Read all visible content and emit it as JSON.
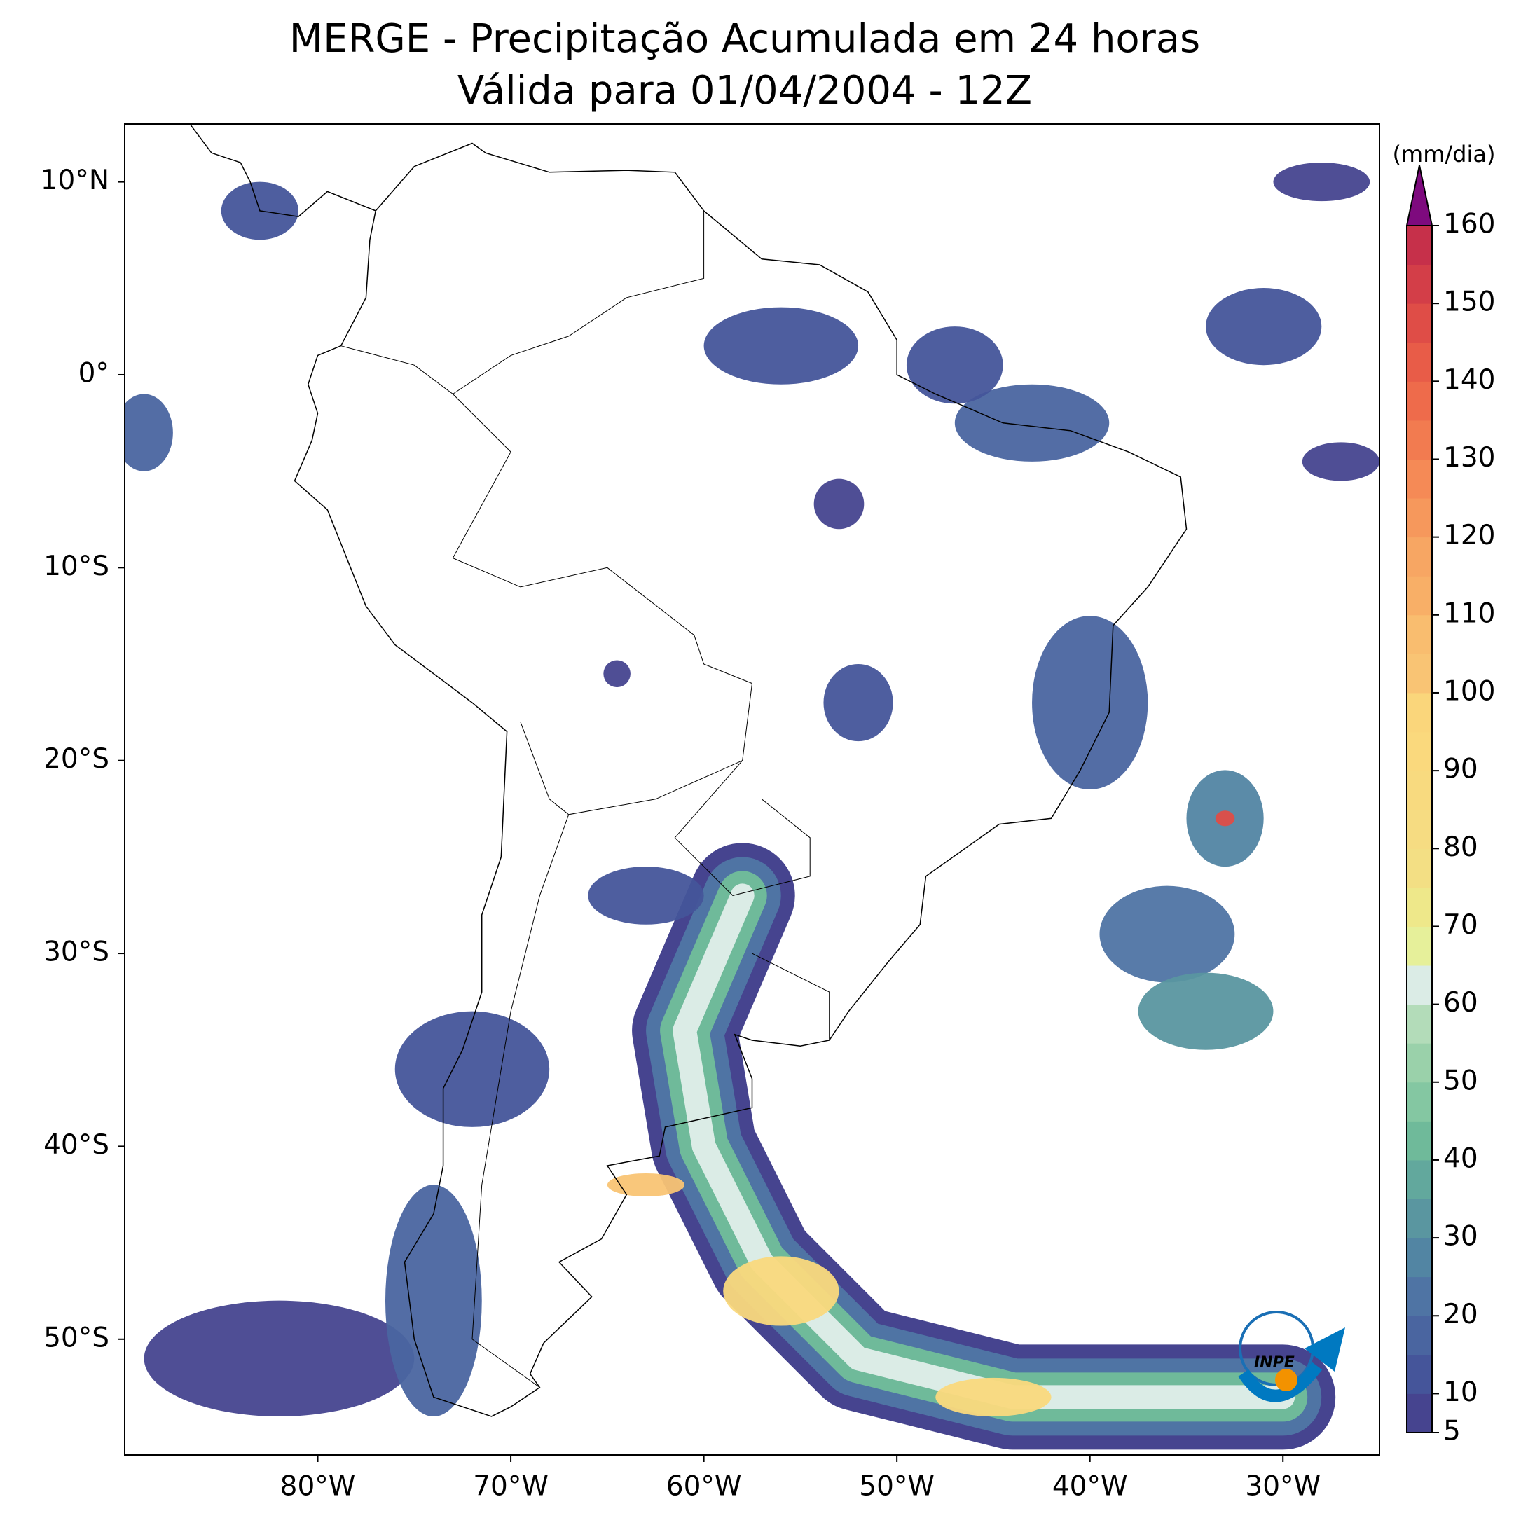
{
  "title": [
    "MERGE - Precipitação Acumulada em 24 horas",
    "Válida para 01/04/2004 - 12Z"
  ],
  "map": {
    "xlim": [
      -90,
      -25
    ],
    "ylim": [
      -56,
      13
    ],
    "xticks": [
      {
        "value": -80,
        "label": "80°W"
      },
      {
        "value": -70,
        "label": "70°W"
      },
      {
        "value": -60,
        "label": "60°W"
      },
      {
        "value": -50,
        "label": "50°W"
      },
      {
        "value": -40,
        "label": "40°W"
      },
      {
        "value": -30,
        "label": "30°W"
      }
    ],
    "yticks": [
      {
        "value": 10,
        "label": "10°N"
      },
      {
        "value": 0,
        "label": "0°"
      },
      {
        "value": -10,
        "label": "10°S"
      },
      {
        "value": -20,
        "label": "20°S"
      },
      {
        "value": -30,
        "label": "30°S"
      },
      {
        "value": -40,
        "label": "40°S"
      },
      {
        "value": -50,
        "label": "50°S"
      }
    ]
  },
  "colorbar": {
    "label": "(mm/dia)",
    "levels": [
      5,
      10,
      15,
      20,
      25,
      30,
      35,
      40,
      45,
      50,
      55,
      60,
      65,
      70,
      75,
      80,
      85,
      90,
      95,
      100,
      105,
      110,
      115,
      120,
      125,
      130,
      135,
      140,
      145,
      150,
      155,
      160
    ],
    "colors": [
      "#46448f",
      "#45559a",
      "#4a65a0",
      "#4f74a4",
      "#5285a3",
      "#5a96a0",
      "#62a89d",
      "#6fba9a",
      "#84c7a2",
      "#9ad1aa",
      "#b3dcb9",
      "#dbece6",
      "#e6f09a",
      "#eee88a",
      "#f3df84",
      "#f6dc82",
      "#f8da7f",
      "#fad97d",
      "#fad67b",
      "#f9c474",
      "#f9bd6f",
      "#f8af67",
      "#f7a663",
      "#f6985c",
      "#f58a56",
      "#f27b50",
      "#ee6b4b",
      "#e85c48",
      "#df4d47",
      "#d33e48",
      "#c6304a"
    ],
    "over_color": "#7e0a7e",
    "ticks": [
      5,
      10,
      20,
      30,
      40,
      50,
      60,
      70,
      80,
      90,
      100,
      110,
      120,
      130,
      140,
      150,
      160
    ]
  },
  "logo": "INPE"
}
